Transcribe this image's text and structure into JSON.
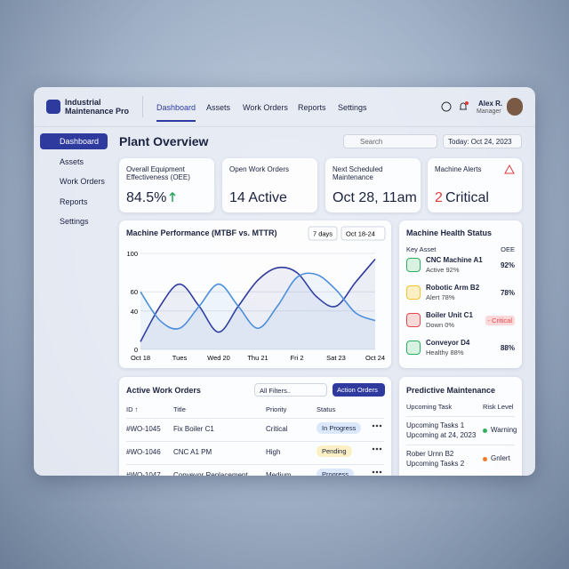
{
  "app": {
    "name": "Industrial Maintenance Pro",
    "top_nav": [
      "Dashboard",
      "Assets",
      "Work Orders",
      "Reports",
      "Settings"
    ],
    "user": {
      "name": "Alex R.",
      "role": "Manager"
    }
  },
  "sidebar": [
    "Dashboard",
    "Assets",
    "Work Orders",
    "Reports",
    "Settings"
  ],
  "page": {
    "title": "Plant Overview",
    "search": "Search",
    "date": "Today: Oct 24, 2023"
  },
  "kpis": [
    {
      "label": "Overall Equipment Effectiveness (OEE)",
      "value": "84.5%"
    },
    {
      "label": "Open Work Orders",
      "value": "14 Active"
    },
    {
      "label": "Next Scheduled Maintenance",
      "value": "Oct 28, 11am"
    },
    {
      "label": "Machine Alerts",
      "count": "2",
      "unit": "Critical"
    }
  ],
  "chart_data": {
    "type": "line",
    "title": "Machine Performance (MTBF vs. MTTR)",
    "range_button": "7 days",
    "date_button": "Oct 18-24",
    "categories": [
      "Oct 18",
      null,
      "Tues",
      null,
      "Wed 20",
      null,
      "Thu 21",
      null,
      "Fri 2",
      null,
      "Sat 23",
      null,
      "Oct 24"
    ],
    "series": [
      {
        "color": "#2f3a9e",
        "values": [
          8,
          45,
          68,
          45,
          18,
          45,
          72,
          85,
          80,
          55,
          45,
          70,
          94
        ]
      },
      {
        "color": "#4b8fdb",
        "values": [
          60,
          30,
          22,
          45,
          68,
          45,
          22,
          45,
          75,
          78,
          62,
          38,
          30
        ]
      }
    ],
    "ylim": [
      0,
      100
    ],
    "yticks": [
      0,
      40,
      60,
      100
    ],
    "grid": true
  },
  "health": {
    "title": "Machine Health Status",
    "columns": [
      "Key Asset",
      "OEE"
    ],
    "rows": [
      {
        "name": "CNC Machine A1",
        "status": "Active 92%",
        "oee": "92%"
      },
      {
        "name": "Robotic Arm B2",
        "status": "Alert 78%",
        "oee": "78%"
      },
      {
        "name": "Boiler Unit C1",
        "status": "Down 0%",
        "oee": "- Critical"
      },
      {
        "name": "Conveyor D4",
        "status": "Healthy 88%",
        "oee": "88%"
      }
    ]
  },
  "work_orders": {
    "title": "Active Work Orders",
    "filter": "All Filters..",
    "action": "Action Orders",
    "columns": [
      "ID ↑",
      "Title",
      "Priority",
      "Status"
    ],
    "rows": [
      [
        "#WO-1045",
        "Fix Boiler C1",
        "Critical",
        "In Progress"
      ],
      [
        "#WO-1046",
        "CNC A1 PM",
        "High",
        "Pending"
      ],
      [
        "#WO-1047",
        "Conveyor Replacement",
        "Medium",
        "Progress"
      ]
    ]
  },
  "predictive": {
    "title": "Predictive Maintenance",
    "columns": [
      "Upcoming Task",
      "Risk Level"
    ],
    "rows": [
      {
        "task": "Upcoming Tasks 1",
        "detail": "Upcoming at 24, 2023",
        "risk": "Warning"
      },
      {
        "task": "Rober Urnn B2",
        "detail": "Upcoming Tasks 2",
        "risk": "Gnlert"
      }
    ]
  }
}
